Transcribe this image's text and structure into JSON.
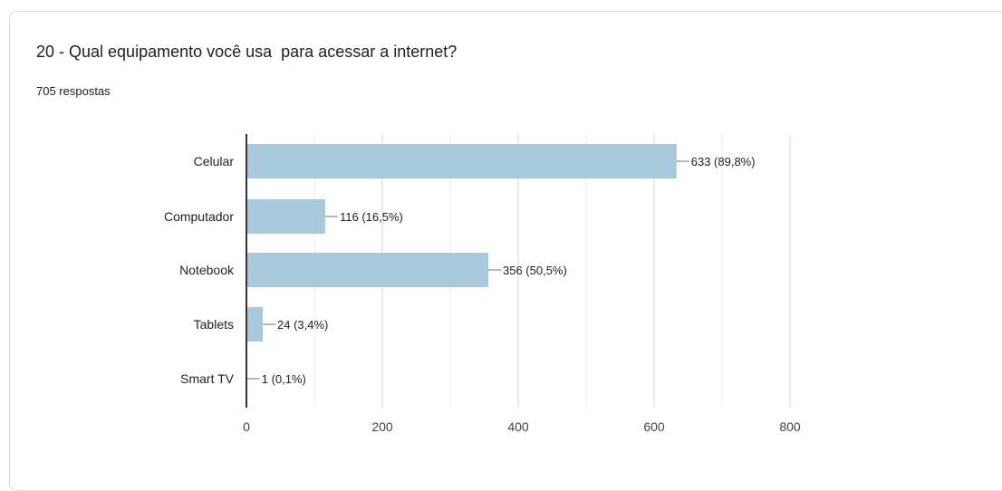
{
  "question": {
    "title": "20 - Qual equipamento você usa  para acessar a internet?",
    "responses": "705 respostas"
  },
  "chart_data": {
    "type": "bar",
    "orientation": "horizontal",
    "categories": [
      "Celular",
      "Computador",
      "Notebook",
      "Tablets",
      "Smart TV"
    ],
    "values": [
      633,
      116,
      356,
      24,
      1
    ],
    "data_labels": [
      "633 (89,8%)",
      "116 (16,5%)",
      "356 (50,5%)",
      "24 (3,4%)",
      "1 (0,1%)"
    ],
    "xlim": [
      0,
      800
    ],
    "xticks": [
      "0",
      "200",
      "400",
      "600",
      "800"
    ],
    "grid": true,
    "bar_color": "#a8c8dc",
    "title": "",
    "xlabel": "",
    "ylabel": ""
  }
}
